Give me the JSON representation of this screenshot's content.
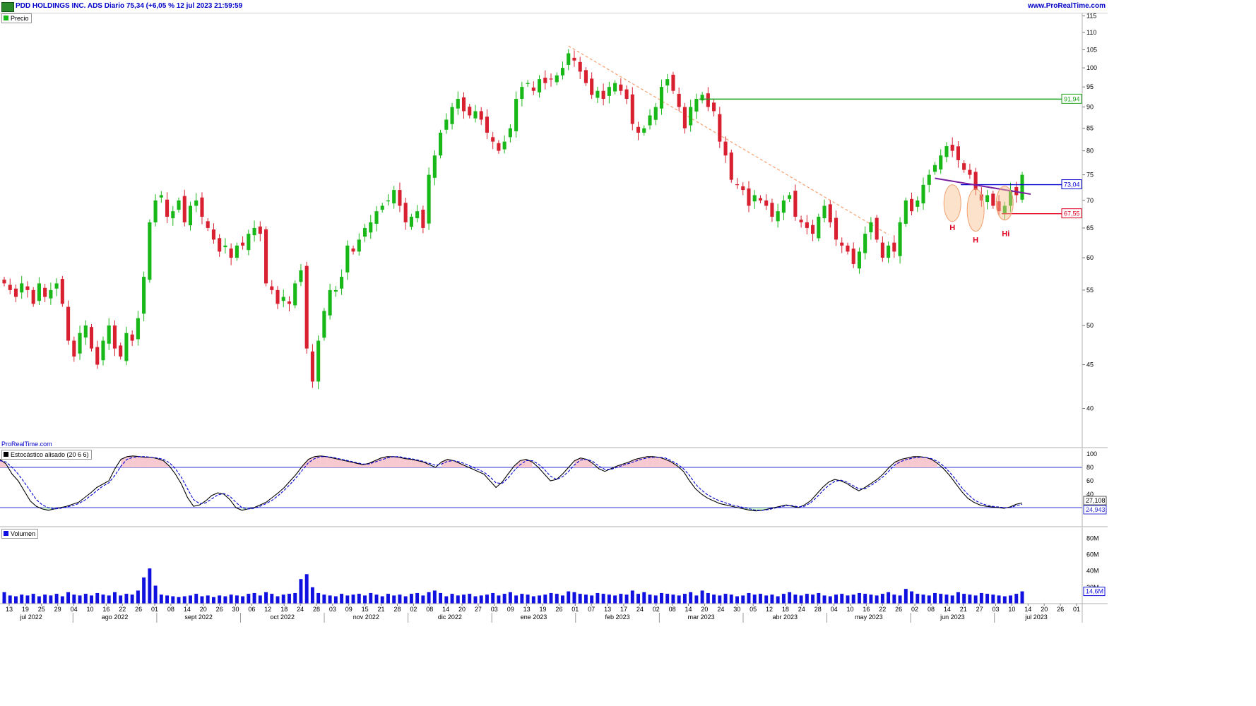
{
  "header": {
    "title": "PDD HOLDINGS INC. ADS Diario 75,34 (+6,05 % 12 jul 2023 21:59:59",
    "site": "www.ProRealTime.com"
  },
  "watermark": "ProRealTime.com",
  "chart_data": [
    {
      "type": "candlestick",
      "panel": "price",
      "legend": "Precio",
      "ylim": [
        36,
        116
      ],
      "scale": "log",
      "y_ticks": [
        115,
        110,
        105,
        100,
        95,
        90,
        85,
        80,
        75,
        70,
        65,
        60,
        55,
        50,
        45,
        40
      ],
      "colors": {
        "up": "#18b818",
        "down": "#d82030"
      },
      "close": [
        56,
        55,
        54,
        56,
        55,
        53,
        56,
        54,
        55,
        56,
        53,
        48,
        46,
        49,
        50,
        47,
        45,
        48,
        50,
        47,
        46,
        49,
        48,
        51,
        57,
        66,
        70,
        71,
        67,
        68,
        70,
        66,
        69,
        70,
        67,
        65,
        63,
        61,
        62,
        60,
        62,
        62,
        64,
        65,
        64,
        56,
        55,
        53,
        54,
        53,
        56,
        58,
        47,
        43,
        48,
        52,
        55,
        55,
        57,
        62,
        61,
        63,
        65,
        66,
        68,
        69,
        70,
        72,
        69,
        66,
        67,
        68,
        65,
        75,
        79,
        84,
        87,
        90,
        92,
        89,
        88,
        89,
        87,
        84,
        82,
        80,
        82,
        85,
        92,
        95,
        96,
        94,
        97,
        96,
        97,
        98,
        100,
        104,
        102,
        99,
        96,
        93,
        94,
        92,
        95,
        96,
        94,
        92,
        86,
        84,
        85,
        88,
        90,
        95,
        97,
        94,
        90,
        85,
        90,
        92,
        93,
        90,
        89,
        82,
        79,
        74,
        73,
        72,
        69,
        71,
        70,
        69,
        67,
        68,
        70,
        71,
        67,
        66,
        65,
        64,
        67,
        69,
        66,
        63,
        62,
        61,
        59,
        61,
        64,
        66,
        63,
        60,
        62,
        61,
        66,
        70,
        68,
        70,
        73,
        75,
        77,
        79,
        81,
        80,
        78,
        76,
        75,
        72,
        70,
        71,
        69,
        68,
        69,
        72,
        71,
        75
      ],
      "y_ref_lines": [
        {
          "value": 91.94,
          "label": "91,94",
          "color": "#18a018"
        },
        {
          "value": 73.04,
          "label": "73,04",
          "color": "#0000d0"
        },
        {
          "value": 67.55,
          "label": "67,55",
          "color": "#e00020"
        }
      ],
      "annotations": [
        {
          "text": "H",
          "color": "#e00020"
        },
        {
          "text": "H",
          "color": "#e00020"
        },
        {
          "text": "Hi",
          "color": "#e00020"
        }
      ]
    },
    {
      "type": "line",
      "panel": "stochastic",
      "legend": "Estocástico alisado (20 6 6)",
      "ylim": [
        0,
        100
      ],
      "y_ticks": [
        100,
        80,
        60,
        40
      ],
      "levels": [
        80,
        20
      ],
      "series": [
        {
          "name": "",
          "color": "#000000",
          "dash": false,
          "values": [
            92,
            85,
            70,
            60,
            45,
            30,
            22,
            18,
            16,
            18,
            20,
            22,
            25,
            28,
            35,
            42,
            50,
            55,
            60,
            78,
            92,
            96,
            97,
            96,
            95,
            95,
            93,
            90,
            82,
            70,
            55,
            35,
            22,
            24,
            30,
            38,
            42,
            40,
            32,
            20,
            16,
            18,
            20,
            24,
            28,
            35,
            42,
            50,
            60,
            70,
            82,
            92,
            96,
            97,
            96,
            94,
            92,
            90,
            88,
            86,
            84,
            86,
            90,
            94,
            96,
            96,
            95,
            93,
            92,
            90,
            88,
            84,
            80,
            88,
            92,
            90,
            86,
            82,
            78,
            74,
            70,
            60,
            50,
            58,
            70,
            82,
            90,
            92,
            88,
            80,
            70,
            60,
            62,
            70,
            80,
            90,
            94,
            92,
            86,
            78,
            74,
            78,
            82,
            85,
            88,
            92,
            94,
            96,
            96,
            95,
            92,
            88,
            82,
            74,
            60,
            48,
            40,
            34,
            30,
            26,
            24,
            22,
            20,
            18,
            16,
            15,
            16,
            18,
            20,
            22,
            24,
            22,
            20,
            24,
            30,
            40,
            50,
            58,
            62,
            60,
            56,
            50,
            45,
            50,
            56,
            62,
            70,
            80,
            88,
            92,
            94,
            96,
            96,
            95,
            92,
            86,
            78,
            68,
            56,
            44,
            34,
            28,
            24,
            22,
            21,
            20,
            19,
            21,
            25,
            27
          ]
        },
        {
          "name": "",
          "color": "#0000d0",
          "dash": true,
          "values": [
            90,
            88,
            80,
            70,
            58,
            45,
            32,
            24,
            20,
            18,
            19,
            21,
            23,
            26,
            31,
            38,
            45,
            52,
            57,
            68,
            82,
            92,
            95,
            96,
            96,
            95,
            94,
            92,
            87,
            78,
            65,
            48,
            32,
            26,
            27,
            33,
            39,
            41,
            37,
            28,
            20,
            18,
            19,
            22,
            26,
            31,
            38,
            46,
            55,
            65,
            76,
            87,
            93,
            96,
            96,
            95,
            93,
            91,
            89,
            87,
            85,
            85,
            88,
            91,
            94,
            96,
            96,
            94,
            93,
            91,
            89,
            86,
            83,
            85,
            89,
            90,
            88,
            85,
            81,
            77,
            73,
            66,
            57,
            56,
            64,
            75,
            84,
            90,
            90,
            85,
            77,
            67,
            62,
            66,
            74,
            84,
            91,
            92,
            89,
            82,
            77,
            77,
            80,
            83,
            86,
            89,
            92,
            94,
            95,
            95,
            94,
            90,
            85,
            78,
            68,
            55,
            46,
            39,
            34,
            30,
            27,
            24,
            22,
            20,
            18,
            16,
            16,
            17,
            19,
            21,
            23,
            23,
            21,
            22,
            27,
            35,
            45,
            53,
            59,
            61,
            58,
            53,
            48,
            48,
            53,
            59,
            66,
            75,
            84,
            89,
            92,
            94,
            95,
            95,
            93,
            89,
            82,
            73,
            62,
            50,
            40,
            32,
            27,
            24,
            22,
            21,
            20,
            20,
            23,
            25
          ]
        }
      ],
      "value_labels": [
        "27,108",
        "24,943"
      ]
    },
    {
      "type": "bar",
      "panel": "volume",
      "legend": "Volumen",
      "ylim": [
        0,
        88
      ],
      "y_ticks": [
        "80M",
        "60M",
        "40M",
        "20M"
      ],
      "last_value_label": "14,6M",
      "color": "#1010e0",
      "values": [
        14,
        10,
        9,
        11,
        10,
        12,
        9,
        11,
        10,
        12,
        9,
        14,
        11,
        10,
        12,
        10,
        13,
        11,
        10,
        14,
        10,
        12,
        11,
        16,
        32,
        43,
        22,
        11,
        10,
        9,
        8,
        9,
        10,
        12,
        9,
        10,
        8,
        10,
        9,
        11,
        10,
        9,
        12,
        13,
        10,
        14,
        12,
        9,
        11,
        12,
        13,
        30,
        36,
        20,
        13,
        11,
        10,
        9,
        12,
        10,
        11,
        12,
        10,
        13,
        11,
        9,
        12,
        10,
        11,
        9,
        12,
        13,
        10,
        14,
        16,
        13,
        9,
        12,
        10,
        11,
        12,
        9,
        10,
        11,
        13,
        10,
        12,
        14,
        10,
        12,
        11,
        9,
        10,
        11,
        13,
        12,
        10,
        15,
        14,
        12,
        11,
        10,
        13,
        12,
        11,
        10,
        12,
        11,
        16,
        12,
        14,
        11,
        10,
        13,
        12,
        11,
        10,
        12,
        14,
        10,
        16,
        13,
        11,
        10,
        12,
        11,
        9,
        10,
        13,
        11,
        12,
        10,
        11,
        9,
        12,
        14,
        11,
        10,
        12,
        11,
        13,
        10,
        9,
        11,
        12,
        10,
        11,
        13,
        12,
        11,
        10,
        12,
        14,
        11,
        10,
        18,
        15,
        12,
        11,
        10,
        13,
        12,
        11,
        10,
        14,
        12,
        11,
        10,
        13,
        12,
        11,
        10,
        9,
        10,
        12,
        15
      ]
    }
  ],
  "x_axis": {
    "day_ticks": [
      "13",
      "19",
      "25",
      "29",
      "04",
      "10",
      "16",
      "22",
      "26",
      "01",
      "08",
      "14",
      "20",
      "26",
      "30",
      "06",
      "12",
      "18",
      "24",
      "28",
      "03",
      "09",
      "15",
      "21",
      "28",
      "02",
      "08",
      "14",
      "20",
      "27",
      "03",
      "09",
      "13",
      "19",
      "26",
      "01",
      "07",
      "13",
      "17",
      "24",
      "02",
      "08",
      "14",
      "20",
      "24",
      "30",
      "05",
      "12",
      "18",
      "24",
      "28",
      "04",
      "10",
      "16",
      "22",
      "26",
      "02",
      "08",
      "14",
      "21",
      "27",
      "03",
      "10",
      "14",
      "20",
      "26",
      "01"
    ],
    "month_labels": [
      "jul 2022",
      "ago 2022",
      "sept 2022",
      "oct 2022",
      "nov 2022",
      "dic 2022",
      "ene 2023",
      "feb 2023",
      "mar 2023",
      "abr 2023",
      "may 2023",
      "jun 2023",
      "jul 2023"
    ]
  }
}
